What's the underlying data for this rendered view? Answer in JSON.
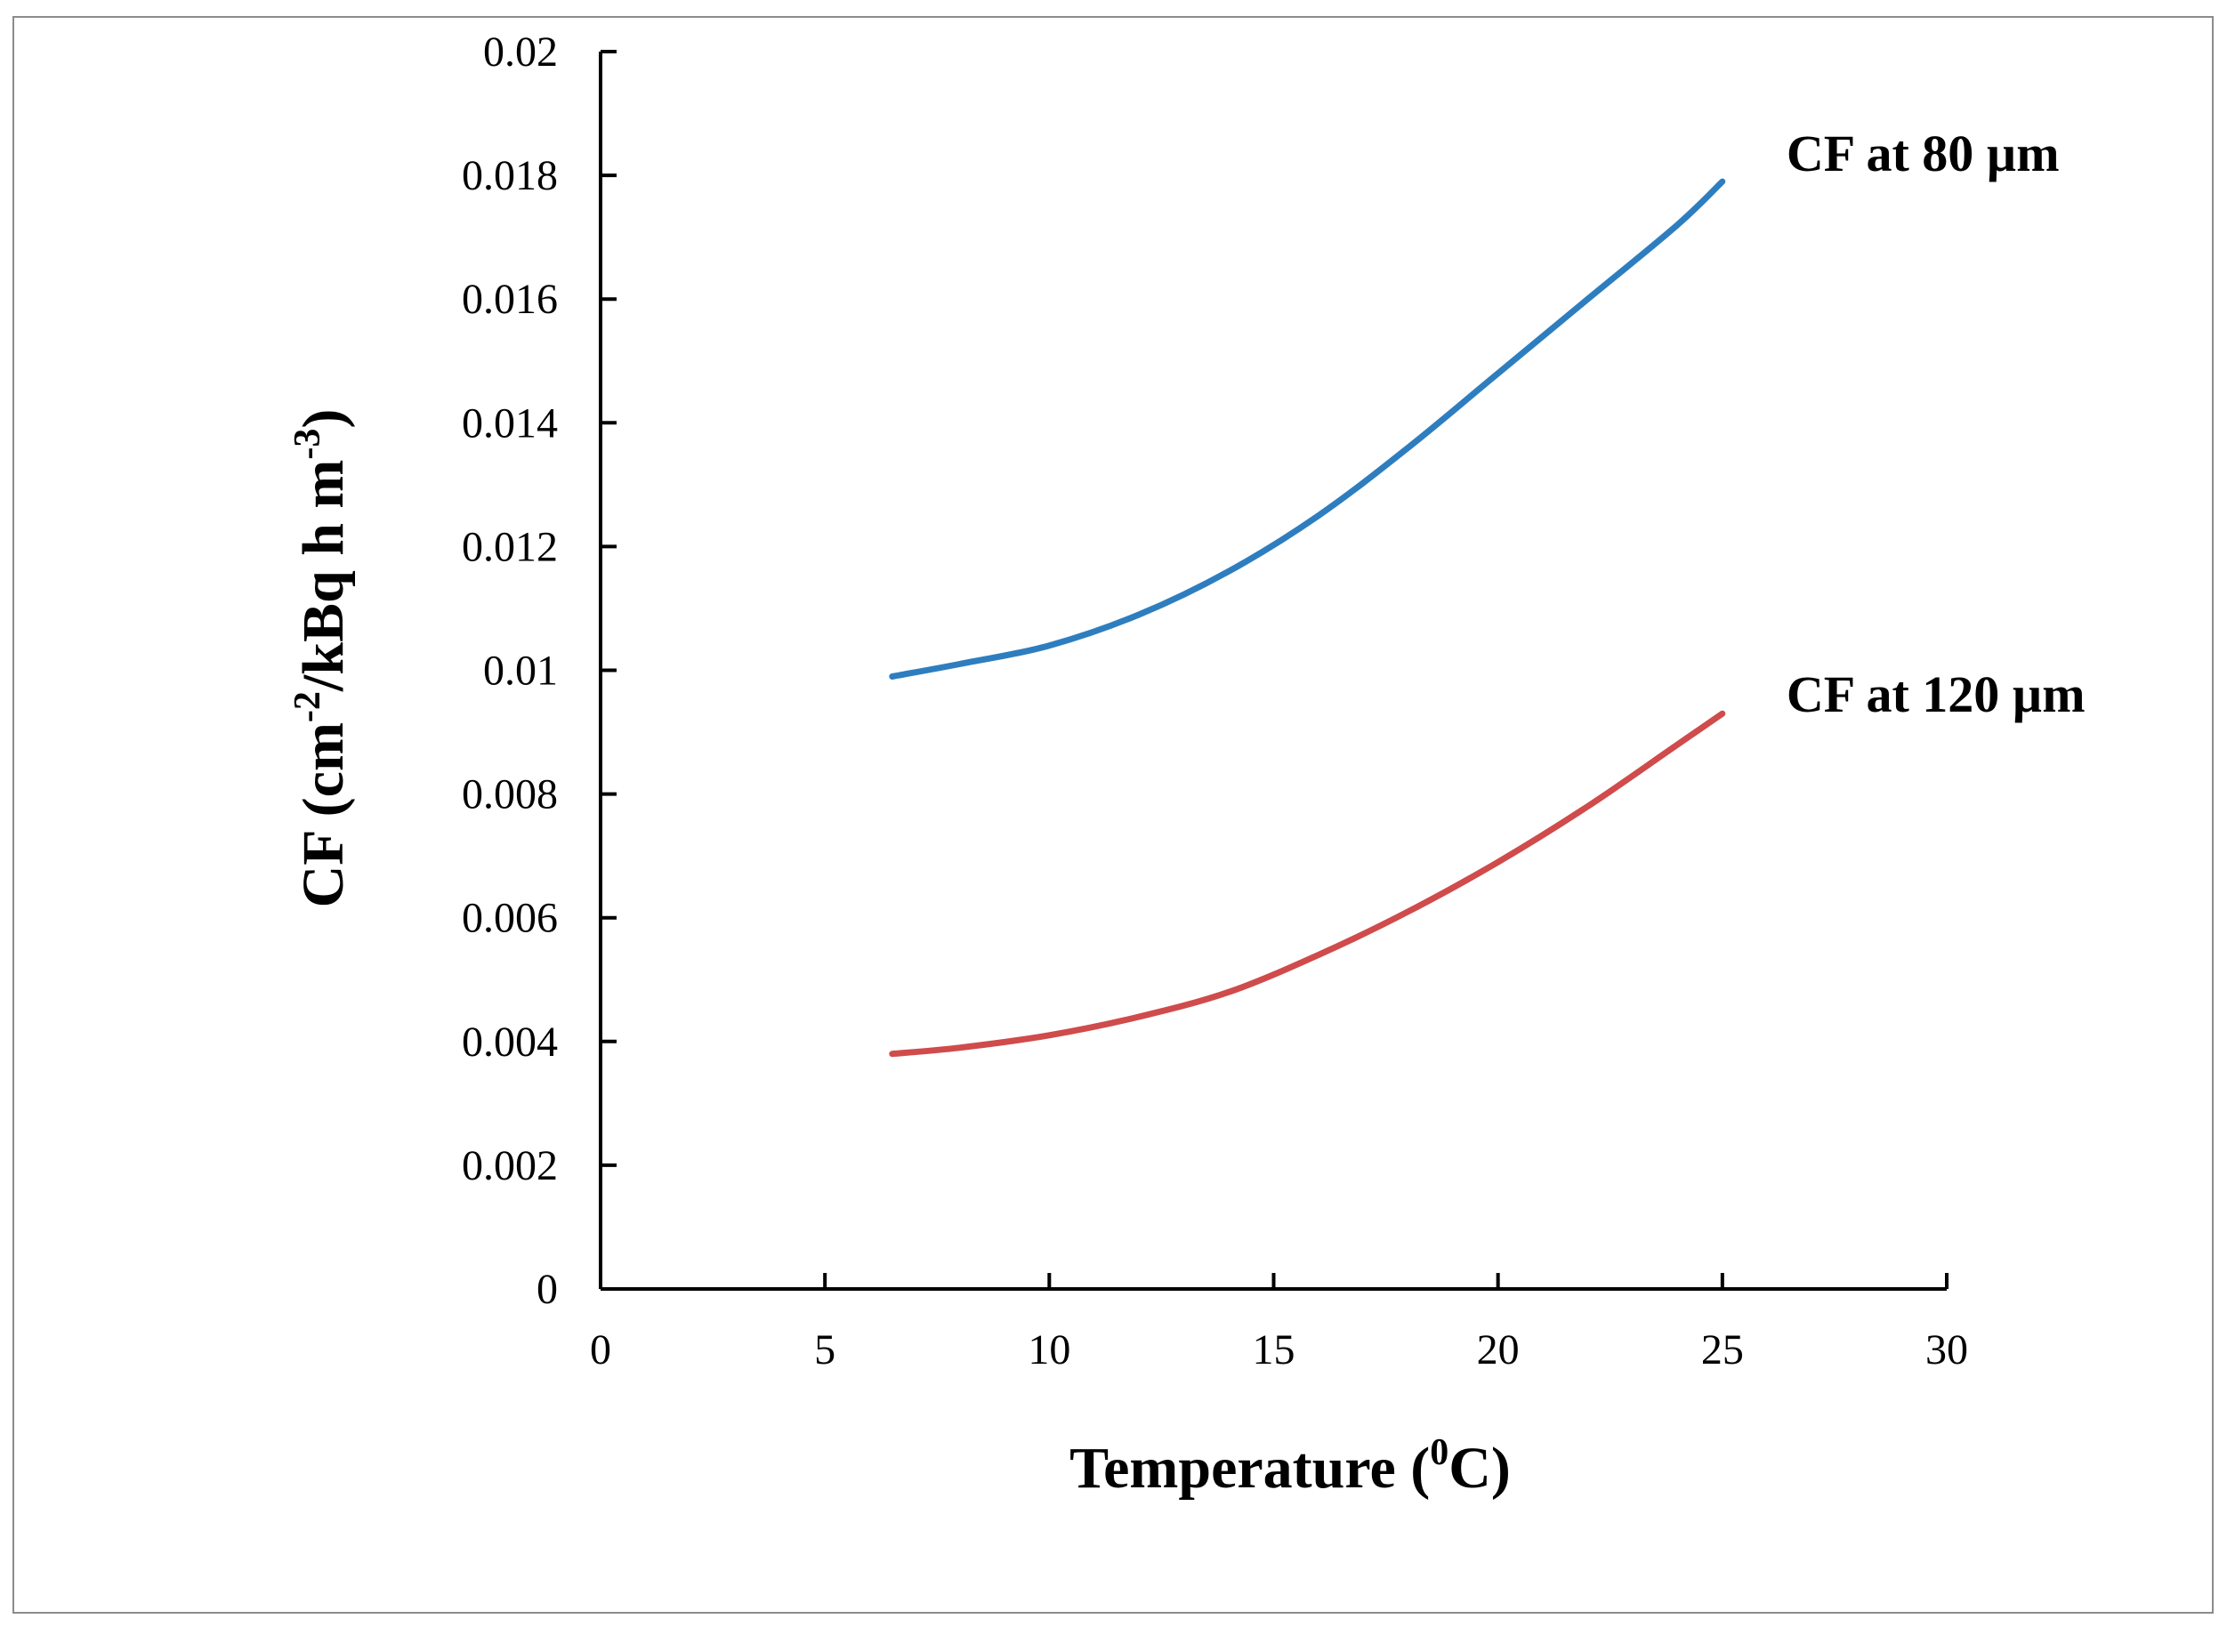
{
  "chart_data": {
    "type": "line",
    "title": "",
    "xlabel": {
      "main": "Temperature (",
      "sup": "0",
      "tail": "C)"
    },
    "ylabel": {
      "main": "CF (cm",
      "sup1": "-2",
      "mid": "/kBq h m",
      "sup2": "-3",
      "tail": ")"
    },
    "xlim": [
      0,
      30
    ],
    "ylim": [
      0,
      0.02
    ],
    "xticks": [
      0,
      5,
      10,
      15,
      20,
      25,
      30
    ],
    "xtick_labels": [
      "0",
      "5",
      "10",
      "15",
      "20",
      "25",
      "30"
    ],
    "yticks": [
      0,
      0.002,
      0.004,
      0.006,
      0.008,
      0.01,
      0.012,
      0.014,
      0.016,
      0.018,
      0.02
    ],
    "ytick_labels": [
      "0",
      "0.002",
      "0.004",
      "0.006",
      "0.008",
      "0.01",
      "0.012",
      "0.014",
      "0.016",
      "0.018",
      "0.02"
    ],
    "grid": false,
    "legend": "none",
    "series": [
      {
        "name": "CF at 80 µm",
        "label": "CF at 80 µm",
        "color": "#2e7ebf",
        "x": [
          6.5,
          8,
          10,
          12,
          14,
          16,
          18,
          20,
          22,
          24,
          25
        ],
        "y": [
          0.0099,
          0.0101,
          0.0104,
          0.0109,
          0.0116,
          0.0125,
          0.0136,
          0.0148,
          0.016,
          0.0172,
          0.0179
        ]
      },
      {
        "name": "CF at 120 µm",
        "label": "CF at 120 µm",
        "color": "#d04b4b",
        "x": [
          6.5,
          8,
          10,
          12,
          14,
          16,
          18,
          20,
          22,
          24,
          25
        ],
        "y": [
          0.0038,
          0.0039,
          0.0041,
          0.0044,
          0.0048,
          0.0054,
          0.0061,
          0.0069,
          0.0078,
          0.0088,
          0.0093
        ]
      }
    ]
  }
}
